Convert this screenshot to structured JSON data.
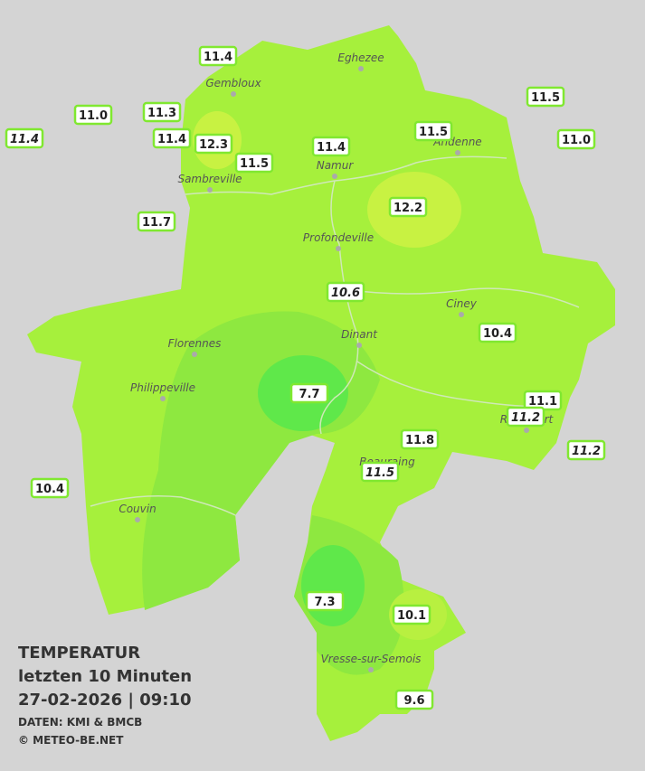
{
  "legend": {
    "title": "TEMPERATUR",
    "period": "letzten 10 Minuten",
    "datetime": "27-02-2026  |  09:10",
    "source": "DATEN: KMI & BMCB",
    "copyright": "© METEO-BE.NET"
  },
  "cities": [
    "Eghezee",
    "Gembloux",
    "Andenne",
    "Namur",
    "Sambreville",
    "Profondeville",
    "Ciney",
    "Dinant",
    "Florennes",
    "Philippeville",
    "Rochefort",
    "Beauraing",
    "Couvin",
    "Vresse-sur-Semois"
  ],
  "readings": [
    {
      "text": "11.4"
    },
    {
      "text": "11.0"
    },
    {
      "text": "11.3"
    },
    {
      "text": "11.4",
      "italic": true
    },
    {
      "text": "11.4"
    },
    {
      "text": "12.3"
    },
    {
      "text": "11.5"
    },
    {
      "text": "11.4"
    },
    {
      "text": "11.5"
    },
    {
      "text": "11.5"
    },
    {
      "text": "11.0"
    },
    {
      "text": "11.7"
    },
    {
      "text": "12.2"
    },
    {
      "text": "10.6",
      "italic": true
    },
    {
      "text": "10.4"
    },
    {
      "text": "7.7"
    },
    {
      "text": "11.1"
    },
    {
      "text": "11.2",
      "italic": true
    },
    {
      "text": "11.8"
    },
    {
      "text": "11.5",
      "italic": true
    },
    {
      "text": "11.2",
      "italic": true
    },
    {
      "text": "10.4"
    },
    {
      "text": "7.3"
    },
    {
      "text": "10.1"
    },
    {
      "text": "9.6"
    }
  ]
}
